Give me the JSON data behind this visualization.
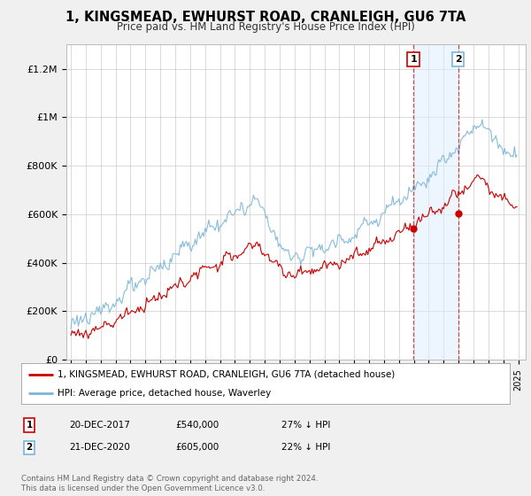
{
  "title": "1, KINGSMEAD, EWHURST ROAD, CRANLEIGH, GU6 7TA",
  "subtitle": "Price paid vs. HM Land Registry's House Price Index (HPI)",
  "ylabel_ticks": [
    "£0",
    "£200K",
    "£400K",
    "£600K",
    "£800K",
    "£1M",
    "£1.2M"
  ],
  "ytick_values": [
    0,
    200000,
    400000,
    600000,
    800000,
    1000000,
    1200000
  ],
  "ylim": [
    0,
    1300000
  ],
  "xlim_start": 1994.7,
  "xlim_end": 2025.5,
  "hpi_color": "#7ab5d8",
  "price_color": "#cc0000",
  "marker1_x": 2017.97,
  "marker1_y": 540000,
  "marker2_x": 2020.97,
  "marker2_y": 605000,
  "vline_color": "#cc0000",
  "vspan_color": "#ddeeff",
  "vspan_alpha": 0.5,
  "legend_label_price": "1, KINGSMEAD, EWHURST ROAD, CRANLEIGH, GU6 7TA (detached house)",
  "legend_label_hpi": "HPI: Average price, detached house, Waverley",
  "marker1_date": "20-DEC-2017",
  "marker1_price": "£540,000",
  "marker1_pct": "27% ↓ HPI",
  "marker2_date": "21-DEC-2020",
  "marker2_price": "£605,000",
  "marker2_pct": "22% ↓ HPI",
  "footer": "Contains HM Land Registry data © Crown copyright and database right 2024.\nThis data is licensed under the Open Government Licence v3.0.",
  "background_color": "#f0f0f0",
  "plot_bg_color": "#ffffff",
  "grid_color": "#cccccc"
}
